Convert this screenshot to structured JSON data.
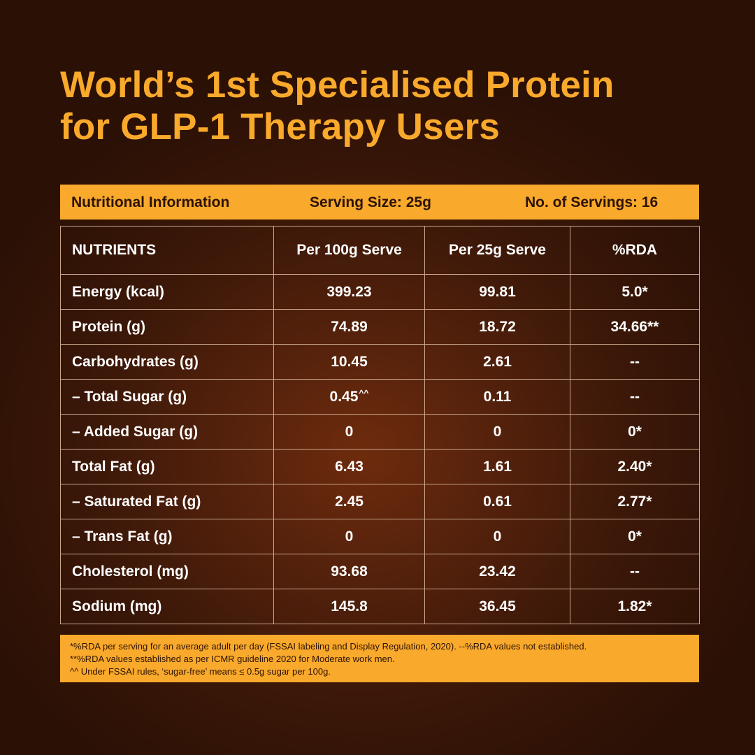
{
  "title": {
    "line1": "World’s 1st Specialised Protein",
    "line2": "for GLP-1 Therapy Users"
  },
  "info_bar": {
    "nutritional_information": "Nutritional Information",
    "serving_size": "Serving Size: 25g",
    "servings": "No. of Servings: 16"
  },
  "table": {
    "headers": [
      "NUTRIENTS",
      "Per 100g Serve",
      "Per 25g Serve",
      "%RDA"
    ],
    "rows": [
      {
        "nutrient": "Energy (kcal)",
        "per100g": "399.23",
        "per25g": "99.81",
        "rda": "5.0*"
      },
      {
        "nutrient": "Protein (g)",
        "per100g": "74.89",
        "per25g": "18.72",
        "rda": "34.66**"
      },
      {
        "nutrient": "Carbohydrates (g)",
        "per100g": "10.45",
        "per25g": "2.61",
        "rda": "--"
      },
      {
        "nutrient": "– Total Sugar (g)",
        "per100g": "0.45",
        "per100g_mark": "^^",
        "per25g": "0.11",
        "rda": "--"
      },
      {
        "nutrient": "– Added Sugar (g)",
        "per100g": "0",
        "per25g": "0",
        "rda": "0*"
      },
      {
        "nutrient": "Total Fat (g)",
        "per100g": "6.43",
        "per25g": "1.61",
        "rda": "2.40*"
      },
      {
        "nutrient": "– Saturated Fat (g)",
        "per100g": "2.45",
        "per25g": "0.61",
        "rda": "2.77*"
      },
      {
        "nutrient": "– Trans Fat (g)",
        "per100g": "0",
        "per25g": "0",
        "rda": "0*"
      },
      {
        "nutrient": "Cholesterol (mg)",
        "per100g": "93.68",
        "per25g": "23.42",
        "rda": "--"
      },
      {
        "nutrient": "Sodium (mg)",
        "per100g": "145.8",
        "per25g": "36.45",
        "rda": "1.82*"
      }
    ]
  },
  "footnotes": [
    "*%RDA per serving for an average adult per day (FSSAI labeling and Display Regulation, 2020). --%RDA values not established.",
    "**%RDA values established as per ICMR guideline 2020 for Moderate work men.",
    "^^ Under FSSAI rules, ‘sugar-free’ means ≤ 0.5g sugar per 100g."
  ],
  "colors": {
    "accent": "#f9a92b",
    "background": "#3a1708",
    "dark_text": "#2d1305",
    "border": "#c9a88e"
  }
}
